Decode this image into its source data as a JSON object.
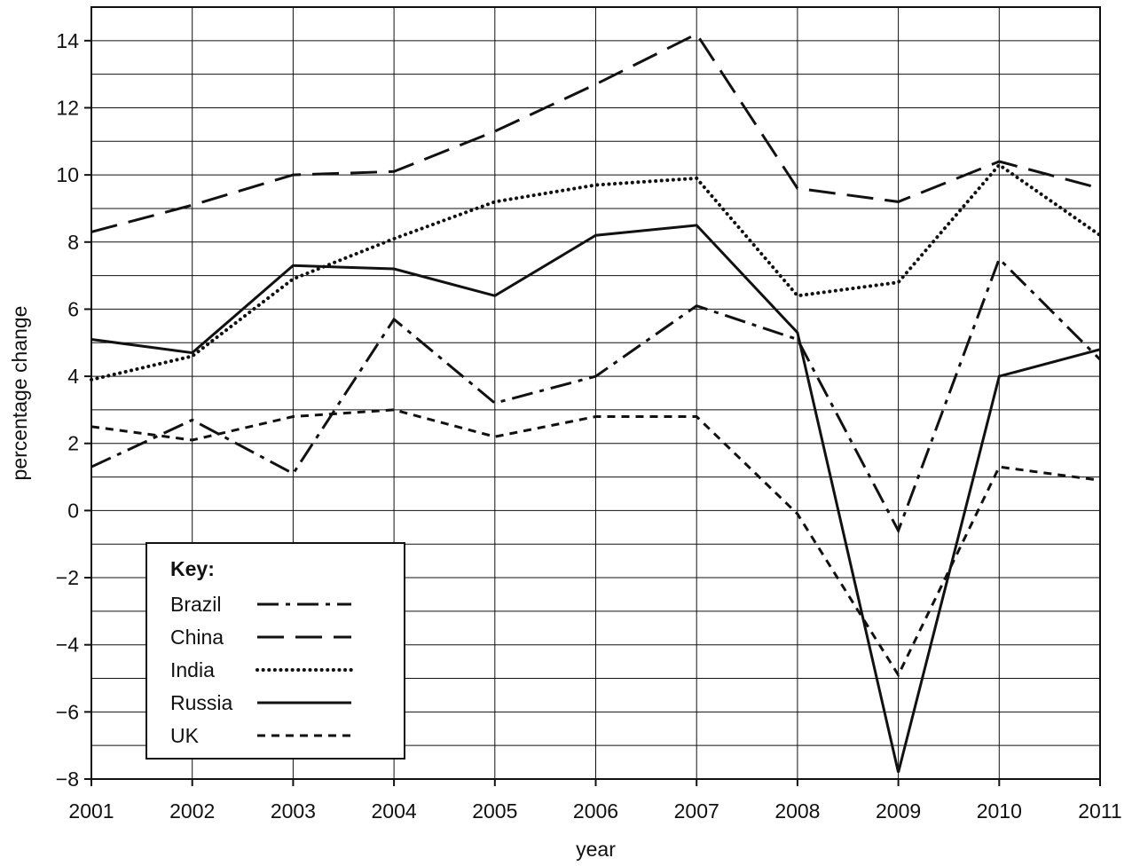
{
  "chart_data": {
    "type": "line",
    "title": "",
    "xlabel": "year",
    "ylabel": "percentage change",
    "x": [
      2001,
      2002,
      2003,
      2004,
      2005,
      2006,
      2007,
      2008,
      2009,
      2010,
      2011
    ],
    "xlim": [
      2001,
      2011
    ],
    "ylim": [
      -8,
      15
    ],
    "y_ticks": [
      -8,
      -6,
      -4,
      -2,
      0,
      2,
      4,
      6,
      8,
      10,
      12,
      14
    ],
    "y_tick_labels": [
      "−8",
      "−6",
      "−4",
      "−2",
      "0",
      "2",
      "4",
      "6",
      "8",
      "10",
      "12",
      "14"
    ],
    "grid": true,
    "legend": {
      "title": "Key:",
      "position": "bottom-left"
    },
    "series": [
      {
        "name": "Brazil",
        "style": "dash-dot",
        "values": [
          1.3,
          2.7,
          1.1,
          5.7,
          3.2,
          4.0,
          6.1,
          5.1,
          -0.6,
          7.5,
          4.5
        ]
      },
      {
        "name": "China",
        "style": "dashed",
        "values": [
          8.3,
          9.1,
          10.0,
          10.1,
          11.3,
          12.7,
          14.2,
          9.6,
          9.2,
          10.4,
          9.6
        ]
      },
      {
        "name": "India",
        "style": "dotted",
        "values": [
          3.9,
          4.6,
          6.9,
          8.1,
          9.2,
          9.7,
          9.9,
          6.4,
          6.8,
          10.3,
          8.2
        ]
      },
      {
        "name": "Russia",
        "style": "solid",
        "values": [
          5.1,
          4.7,
          7.3,
          7.2,
          6.4,
          8.2,
          8.5,
          5.3,
          -7.8,
          4.0,
          4.8
        ]
      },
      {
        "name": "UK",
        "style": "short-dash",
        "values": [
          2.5,
          2.1,
          2.8,
          3.0,
          2.2,
          2.8,
          2.8,
          -0.1,
          -4.9,
          1.3,
          0.9
        ]
      }
    ],
    "line_color": "#111111"
  }
}
